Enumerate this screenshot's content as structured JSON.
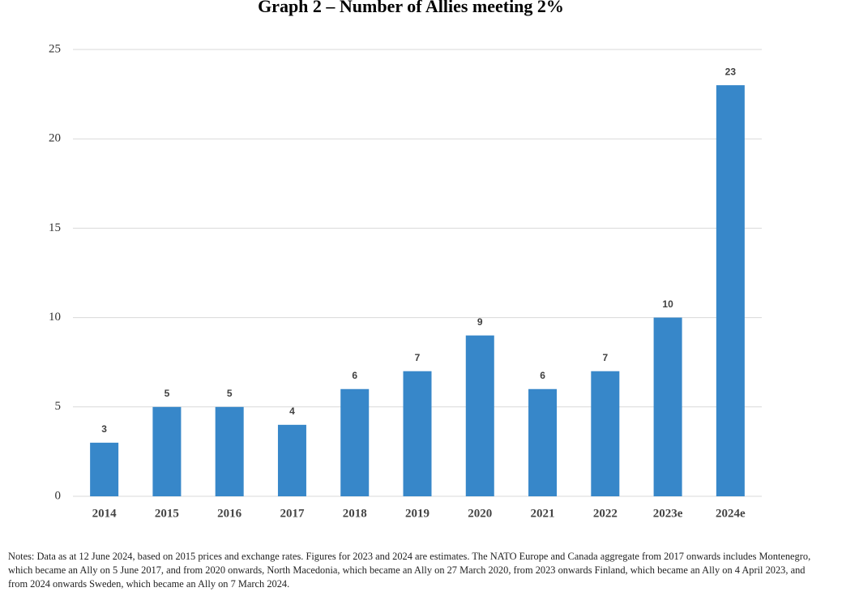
{
  "chart_data": {
    "type": "bar",
    "title": "Graph 2 – Number of Allies meeting 2%",
    "categories": [
      "2014",
      "2015",
      "2016",
      "2017",
      "2018",
      "2019",
      "2020",
      "2021",
      "2022",
      "2023e",
      "2024e"
    ],
    "values": [
      3,
      5,
      5,
      4,
      6,
      7,
      9,
      6,
      7,
      10,
      23
    ],
    "color": "#3787c9",
    "ylim": [
      0,
      25
    ],
    "yticks": [
      0,
      5,
      10,
      15,
      20,
      25
    ],
    "grid": true,
    "notes": "Notes: Data as at 12 June 2024, based on 2015 prices and exchange rates. Figures for 2023 and 2024 are estimates. The NATO Europe and Canada aggregate from 2017 onwards includes Montenegro, which became an Ally on 5 June 2017, and from 2020 onwards, North Macedonia, which became an Ally on 27 March 2020, from 2023 onwards Finland, which became an Ally on 4 April 2023, and from 2024 onwards Sweden, which became an Ally on 7 March 2024."
  }
}
